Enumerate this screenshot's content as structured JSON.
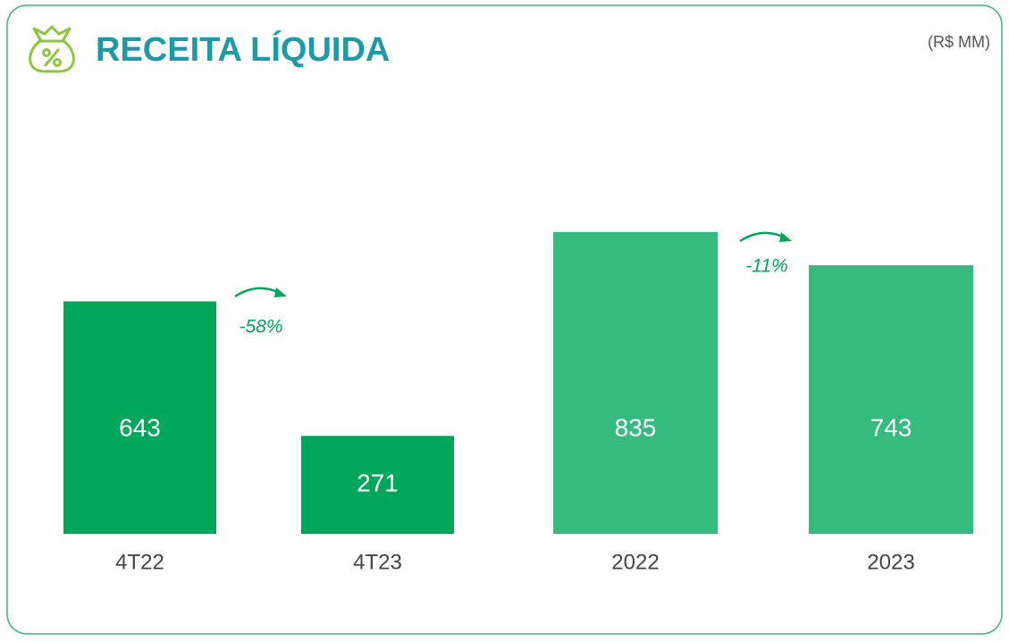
{
  "chart_data": {
    "type": "bar",
    "title": "RECEITA LÍQUIDA",
    "subtitle": "(R$ MM)",
    "categories": [
      "4T22",
      "4T23",
      "2022",
      "2023"
    ],
    "values": [
      643,
      271,
      835,
      743
    ],
    "colors": [
      "#00a65a",
      "#00a65a",
      "#36bb7e",
      "#36bb7e"
    ],
    "annotations": [
      "-58%",
      "-11%"
    ]
  }
}
